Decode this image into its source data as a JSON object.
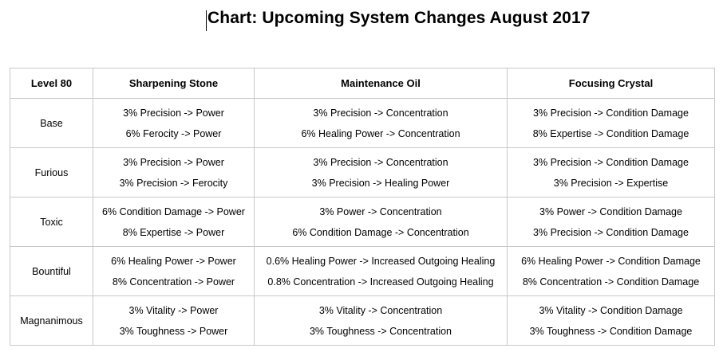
{
  "title": "Chart: Upcoming System Changes August 2017",
  "table": {
    "headers": [
      "Level 80",
      "Sharpening Stone",
      "Maintenance Oil",
      "Focusing Crystal"
    ],
    "rows": [
      {
        "label": "Base",
        "cells": [
          [
            "3% Precision -> Power",
            "6% Ferocity -> Power"
          ],
          [
            "3% Precision -> Concentration",
            "6% Healing Power -> Concentration"
          ],
          [
            "3% Precision -> Condition Damage",
            "8% Expertise -> Condition Damage"
          ]
        ]
      },
      {
        "label": "Furious",
        "cells": [
          [
            "3% Precision -> Power",
            "3% Precision -> Ferocity"
          ],
          [
            "3% Precision -> Concentration",
            "3% Precision -> Healing Power"
          ],
          [
            "3% Precision -> Condition Damage",
            "3% Precision -> Expertise"
          ]
        ]
      },
      {
        "label": "Toxic",
        "cells": [
          [
            "6% Condition Damage -> Power",
            "8% Expertise -> Power"
          ],
          [
            "3% Power -> Concentration",
            "6% Condition Damage -> Concentration"
          ],
          [
            "3% Power -> Condition Damage",
            "3% Precision -> Condition Damage"
          ]
        ]
      },
      {
        "label": "Bountiful",
        "cells": [
          [
            "6% Healing Power -> Power",
            "8% Concentration -> Power"
          ],
          [
            "0.6% Healing Power -> Increased Outgoing Healing",
            "0.8% Concentration -> Increased Outgoing Healing"
          ],
          [
            "6% Healing Power -> Condition Damage",
            "8% Concentration -> Condition Damage"
          ]
        ]
      },
      {
        "label": "Magnanimous",
        "cells": [
          [
            "3% Vitality -> Power",
            "3% Toughness -> Power"
          ],
          [
            "3% Vitality -> Concentration",
            "3% Toughness -> Concentration"
          ],
          [
            "3% Vitality -> Condition Damage",
            "3% Toughness -> Condition Damage"
          ]
        ]
      }
    ]
  }
}
